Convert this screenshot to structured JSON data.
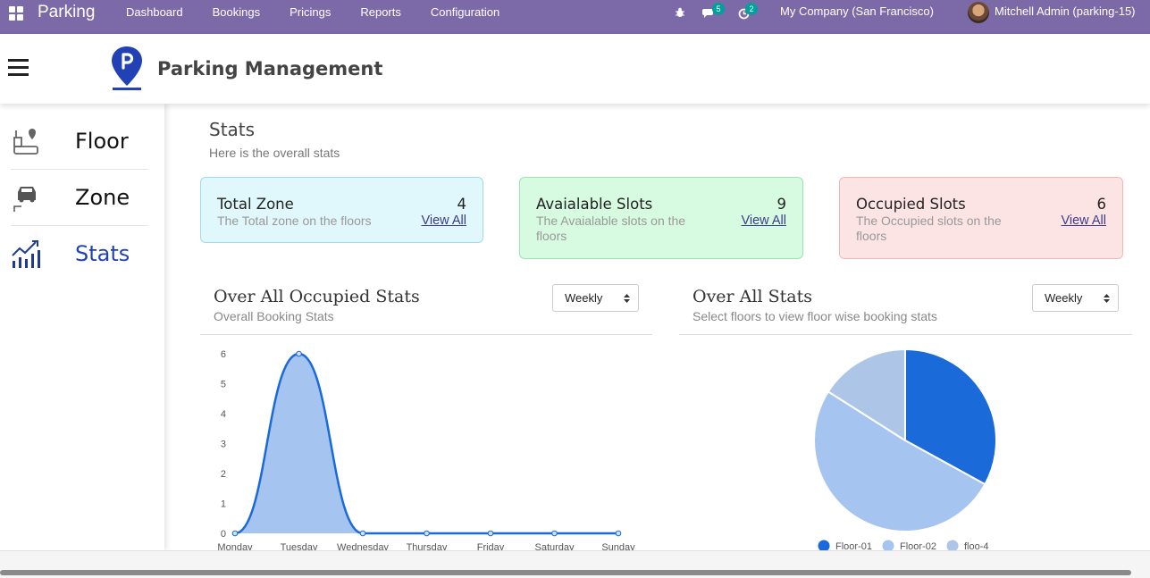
{
  "topbar": {
    "brand": "Parking",
    "menu": [
      "Dashboard",
      "Bookings",
      "Pricings",
      "Reports",
      "Configuration"
    ],
    "messages_count": "5",
    "activities_count": "2",
    "company": "My Company (San Francisco)",
    "user": "Mitchell Admin (parking-15)"
  },
  "header": {
    "title": "Parking Management"
  },
  "sidebar": {
    "items": [
      {
        "label": "Floor",
        "icon": "floor-icon",
        "active": false
      },
      {
        "label": "Zone",
        "icon": "car-icon",
        "active": false
      },
      {
        "label": "Stats",
        "icon": "stats-chart-icon",
        "active": true
      }
    ]
  },
  "stats": {
    "title": "Stats",
    "subtitle": "Here is the overall stats"
  },
  "cards": [
    {
      "title": "Total Zone",
      "count": "4",
      "description": "The Total zone on the floors",
      "link": "View All"
    },
    {
      "title": "Avaialable Slots",
      "count": "9",
      "description": "The Avaialable slots on the floors",
      "link": "View All"
    },
    {
      "title": "Occupied Slots",
      "count": "6",
      "description": "The Occupied slots on the floors",
      "link": "View All"
    }
  ],
  "occupied_panel": {
    "title": "Over All Occupied Stats",
    "subtitle": "Overall Booking Stats",
    "period": "Weekly"
  },
  "overall_panel": {
    "title": "Over All Stats",
    "subtitle": "Select floors to view floor wise booking stats",
    "period": "Weekly"
  },
  "colors": {
    "accent": "#7c6aa8",
    "line": "#1a6ad9",
    "area": "#a6c4f0",
    "pie": [
      "#1a6ad9",
      "#a6c4f0",
      "#adc6e8"
    ]
  },
  "chart_data": [
    {
      "type": "area",
      "categories": [
        "Monday",
        "Tuesday",
        "Wednesday",
        "Thursday",
        "Friday",
        "Saturday",
        "Sunday"
      ],
      "series": [
        {
          "values": [
            0,
            6,
            0,
            0,
            0,
            0,
            0
          ]
        }
      ],
      "ylim": [
        0,
        6
      ],
      "yticks": [
        0,
        1,
        2,
        3,
        4,
        5,
        6
      ],
      "grid": false,
      "smooth": true
    },
    {
      "type": "pie",
      "labels": [
        "Floor-01",
        "Floor-02",
        "floo-4"
      ],
      "values": [
        33,
        51,
        16
      ],
      "legend": "bottom"
    }
  ]
}
